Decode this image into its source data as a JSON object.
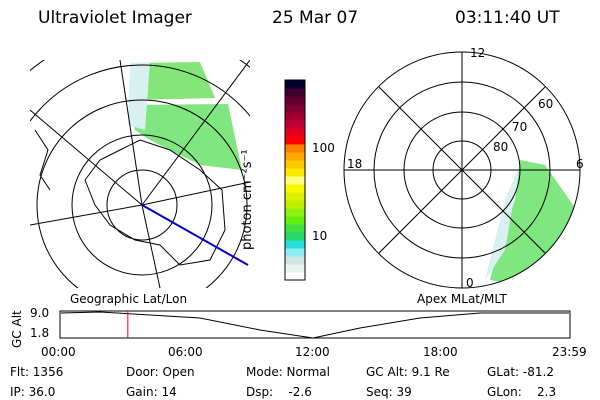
{
  "header": {
    "instrument": "Ultraviolet Imager",
    "date": "25 Mar 07",
    "time": "03:11:40 UT"
  },
  "colorbar": {
    "unit_label": "photon cm⁻²s⁻¹",
    "tick_100": "100",
    "tick_10": "10",
    "colors": [
      "#ffffff",
      "#e8f4ee",
      "#d4e4e4",
      "#90ecf4",
      "#28e0d8",
      "#28d868",
      "#40e040",
      "#60f010",
      "#90f010",
      "#c0f000",
      "#e0f000",
      "#f8f800",
      "#ffff80",
      "#ffe800",
      "#ffc800",
      "#ffa800",
      "#ff8000",
      "#ff0000",
      "#e00020",
      "#c00030",
      "#a00030",
      "#800030",
      "#600030",
      "#400030",
      "#000030"
    ]
  },
  "left_plot": {
    "label": "Geographic Lat/Lon"
  },
  "right_plot": {
    "label": "Apex MLat/MLT",
    "mlt_12": "12",
    "mlt_18": "18",
    "mlt_6": "6",
    "mlt_0": "0",
    "lat_60": "60",
    "lat_70": "70",
    "lat_80": "80"
  },
  "timeline": {
    "ylabel": "GC Alt",
    "y_max": "9.0",
    "y_min": "1.8",
    "ticks": [
      "00:00",
      "06:00",
      "12:00",
      "18:00",
      "23:59"
    ],
    "current_time_fraction": 0.133,
    "marker_color": "#ff0000"
  },
  "info": {
    "flt": "Flt: 1356",
    "ip": "IP: 36.0",
    "door": "Door: Open",
    "gain": "Gain: 14",
    "mode": "Mode: Normal",
    "dsp": "Dsp:    -2.6",
    "gcalt": "GC Alt: 9.1 Re",
    "seq": "Seq: 39",
    "glat": "GLat: -81.2",
    "glon": "GLon:    2.3"
  }
}
